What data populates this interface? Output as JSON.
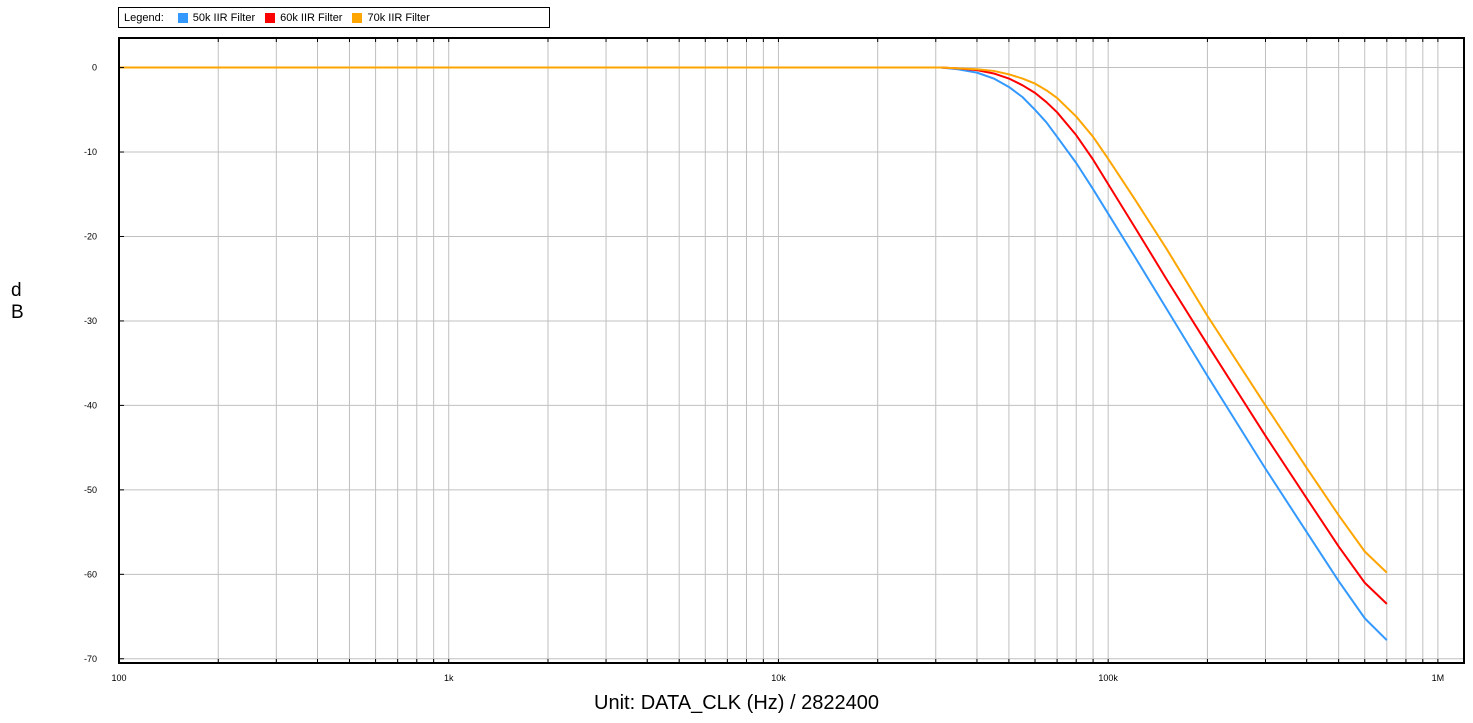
{
  "chart_data": {
    "type": "line",
    "x_scale": "log",
    "title": "",
    "xlabel": "Unit: DATA_CLK (Hz) / 2822400",
    "ylabel": "dB",
    "xlim": [
      100,
      1200000
    ],
    "ylim": [
      -70.5,
      3.5
    ],
    "grid": true,
    "legend": {
      "title": "Legend:",
      "position": "top-left"
    },
    "x_ticks": [
      {
        "value": 100,
        "label": "100"
      },
      {
        "value": 1000,
        "label": "1k"
      },
      {
        "value": 10000,
        "label": "10k"
      },
      {
        "value": 100000,
        "label": "100k"
      },
      {
        "value": 1000000,
        "label": "1M"
      }
    ],
    "y_ticks": [
      0,
      -10,
      -20,
      -30,
      -40,
      -50,
      -60,
      -70
    ],
    "series": [
      {
        "name": "50k IIR Filter",
        "color": "#3399ff",
        "points": [
          [
            100,
            0
          ],
          [
            31000,
            0
          ],
          [
            35000,
            -0.2
          ],
          [
            40000,
            -0.6
          ],
          [
            45000,
            -1.3
          ],
          [
            50000,
            -2.3
          ],
          [
            55000,
            -3.5
          ],
          [
            60000,
            -5.0
          ],
          [
            65000,
            -6.5
          ],
          [
            70000,
            -8.2
          ],
          [
            80000,
            -11.3
          ],
          [
            90000,
            -14.4
          ],
          [
            100000,
            -17.3
          ],
          [
            120000,
            -22.3
          ],
          [
            150000,
            -28.5
          ],
          [
            200000,
            -36.5
          ],
          [
            300000,
            -47.5
          ],
          [
            400000,
            -55.0
          ],
          [
            500000,
            -60.8
          ],
          [
            600000,
            -65.2
          ],
          [
            700000,
            -67.8
          ]
        ]
      },
      {
        "name": "60k IIR Filter",
        "color": "#ff0000",
        "points": [
          [
            100,
            0
          ],
          [
            31000,
            0
          ],
          [
            35000,
            -0.1
          ],
          [
            40000,
            -0.3
          ],
          [
            45000,
            -0.7
          ],
          [
            50000,
            -1.3
          ],
          [
            55000,
            -2.1
          ],
          [
            60000,
            -3.0
          ],
          [
            65000,
            -4.1
          ],
          [
            70000,
            -5.3
          ],
          [
            80000,
            -8.0
          ],
          [
            90000,
            -10.9
          ],
          [
            100000,
            -13.8
          ],
          [
            120000,
            -18.8
          ],
          [
            150000,
            -25.0
          ],
          [
            200000,
            -32.8
          ],
          [
            300000,
            -43.6
          ],
          [
            400000,
            -51.0
          ],
          [
            500000,
            -56.7
          ],
          [
            600000,
            -61.0
          ],
          [
            700000,
            -63.5
          ]
        ]
      },
      {
        "name": "70k IIR Filter",
        "color": "#ffa500",
        "points": [
          [
            100,
            0
          ],
          [
            31000,
            0
          ],
          [
            35000,
            -0.1
          ],
          [
            40000,
            -0.2
          ],
          [
            45000,
            -0.4
          ],
          [
            50000,
            -0.8
          ],
          [
            55000,
            -1.3
          ],
          [
            60000,
            -1.9
          ],
          [
            65000,
            -2.7
          ],
          [
            70000,
            -3.6
          ],
          [
            80000,
            -5.8
          ],
          [
            90000,
            -8.2
          ],
          [
            100000,
            -10.8
          ],
          [
            120000,
            -15.5
          ],
          [
            150000,
            -21.4
          ],
          [
            200000,
            -29.4
          ],
          [
            300000,
            -40.0
          ],
          [
            400000,
            -47.4
          ],
          [
            500000,
            -53.0
          ],
          [
            600000,
            -57.3
          ],
          [
            700000,
            -59.8
          ]
        ]
      }
    ]
  }
}
